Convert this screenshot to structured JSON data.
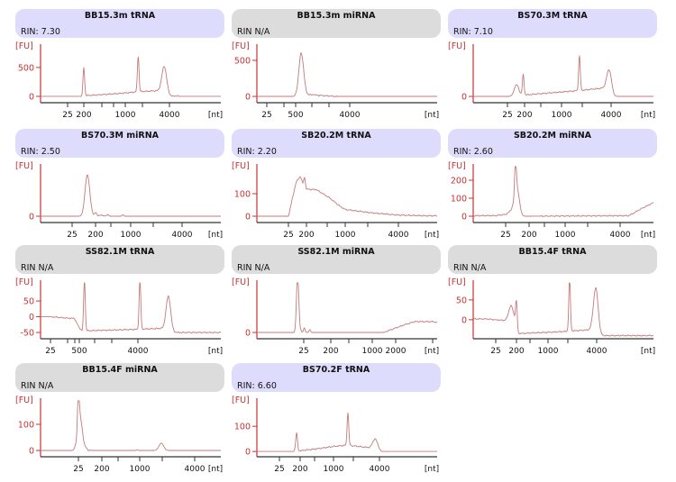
{
  "colors": {
    "header_blue": "#dedcfc",
    "header_gray": "#dcdcdc",
    "axis_y": "#c83232",
    "axis_x": "#333333",
    "trace": "#c47a7a"
  },
  "chart_data": [
    {
      "type": "line",
      "title": "BB15.3m tRNA",
      "rin": "RIN: 7.30",
      "header": "blue",
      "ylabel": "[FU]",
      "xlabel": "[nt]",
      "ylim": [
        -110,
        810
      ],
      "y_ticks": [
        0,
        500
      ],
      "x_ticks": [
        "25",
        "200",
        "",
        "",
        "1000",
        "",
        "4000"
      ],
      "peaks": [
        {
          "nt": 200,
          "fu": 500,
          "shape": "sharp"
        },
        {
          "nt": 1500,
          "fu": 700,
          "shape": "sharp"
        },
        {
          "nt": 3400,
          "fu": 520,
          "shape": "broad"
        }
      ],
      "baseline": [
        [
          150,
          0
        ],
        [
          200,
          10
        ],
        [
          800,
          50
        ],
        [
          1500,
          80
        ],
        [
          3000,
          100
        ],
        [
          4300,
          0
        ],
        [
          5000,
          8
        ],
        [
          5600,
          0
        ]
      ]
    },
    {
      "type": "line",
      "title": "BB15.3m miRNA",
      "rin": "RIN N/A",
      "header": "gray",
      "ylabel": "[FU]",
      "xlabel": "[nt]",
      "ylim": [
        -87,
        650
      ],
      "y_ticks": [
        0,
        500
      ],
      "x_ticks": [
        "25",
        "",
        "500",
        "",
        "",
        "4000"
      ],
      "peaks": [
        {
          "nt": 620,
          "fu": 600,
          "shape": "broad"
        },
        {
          "nt": 700,
          "fu": 40,
          "shape": "sharp"
        },
        {
          "nt": 1000,
          "fu": 30,
          "shape": "sharp"
        }
      ],
      "baseline": [
        [
          450,
          0
        ],
        [
          550,
          15
        ],
        [
          800,
          25
        ],
        [
          1500,
          10
        ],
        [
          2500,
          0
        ]
      ]
    },
    {
      "type": "line",
      "title": "BS70.3M tRNA",
      "rin": "RIN: 7.10",
      "header": "blue",
      "ylabel": "[FU]",
      "xlabel": "[nt]",
      "ylim": [
        -13,
        97
      ],
      "y_ticks": [
        0
      ],
      "x_ticks": [
        "25",
        "200",
        "",
        "1000",
        "",
        "4000"
      ],
      "peaks": [
        {
          "nt": 75,
          "fu": 24,
          "shape": "broad"
        },
        {
          "nt": 170,
          "fu": 45,
          "shape": "sharp"
        },
        {
          "nt": 1650,
          "fu": 85,
          "shape": "sharp"
        },
        {
          "nt": 3800,
          "fu": 55,
          "shape": "broad"
        }
      ],
      "baseline": [
        [
          50,
          0
        ],
        [
          200,
          3
        ],
        [
          1600,
          12
        ],
        [
          3500,
          18
        ],
        [
          4300,
          0
        ]
      ]
    },
    {
      "type": "line",
      "title": "BS70.3M miRNA",
      "rin": "RIN: 2.50",
      "header": "blue",
      "ylabel": "[FU]",
      "xlabel": "[nt]",
      "ylim": [
        -7,
        52
      ],
      "y_ticks": [
        0
      ],
      "x_ticks": [
        "25",
        "200",
        "",
        "1000",
        "",
        "4000"
      ],
      "peaks": [
        {
          "nt": 97,
          "fu": 46,
          "shape": "broad"
        },
        {
          "nt": 200,
          "fu": 4,
          "shape": "sharp"
        },
        {
          "nt": 350,
          "fu": 2,
          "shape": "sharp"
        },
        {
          "nt": 700,
          "fu": 1.5,
          "shape": "sharp"
        }
      ],
      "baseline": [
        [
          60,
          0
        ],
        [
          85,
          1
        ],
        [
          250,
          1
        ],
        [
          400,
          0
        ]
      ]
    },
    {
      "type": "line",
      "title": "SB20.2M tRNA",
      "rin": "RIN: 2.20",
      "header": "blue",
      "ylabel": "[FU]",
      "xlabel": "[nt]",
      "ylim": [
        -28,
        208
      ],
      "y_ticks": [
        0,
        100
      ],
      "x_ticks": [
        "25",
        "200",
        "",
        "1000",
        "",
        "4000"
      ],
      "peaks": [],
      "baseline": [
        [
          25,
          0
        ],
        [
          60,
          150
        ],
        [
          100,
          178
        ],
        [
          130,
          145
        ],
        [
          160,
          175
        ],
        [
          200,
          120
        ],
        [
          300,
          118
        ],
        [
          500,
          85
        ],
        [
          800,
          45
        ],
        [
          1000,
          30
        ],
        [
          2000,
          15
        ],
        [
          4000,
          5
        ],
        [
          8000,
          2
        ]
      ]
    },
    {
      "type": "line",
      "title": "SB20.2M miRNA",
      "rin": "RIN: 2.60",
      "header": "blue",
      "ylabel": "[FU]",
      "xlabel": "[nt]",
      "ylim": [
        -35,
        260
      ],
      "y_ticks": [
        0,
        100,
        200
      ],
      "x_ticks": [
        "25",
        "200",
        "",
        "1000",
        "",
        "4000"
      ],
      "peaks": [
        {
          "nt": 60,
          "fu": 215,
          "shape": "sharp"
        },
        {
          "nt": 68,
          "fu": 160,
          "shape": "broad"
        }
      ],
      "baseline": [
        [
          10,
          3
        ],
        [
          25,
          10
        ],
        [
          45,
          35
        ],
        [
          90,
          5
        ],
        [
          120,
          0
        ],
        [
          5000,
          3
        ],
        [
          7000,
          45
        ],
        [
          9300,
          75
        ]
      ]
    },
    {
      "type": "line",
      "title": "SS82.1M tRNA",
      "rin": "RIN N/A",
      "header": "gray",
      "ylabel": "[FU]",
      "xlabel": "[nt]",
      "ylim": [
        -70,
        99
      ],
      "y_ticks": [
        50,
        0,
        -50
      ],
      "x_ticks": [
        "25",
        "",
        "",
        "500",
        "",
        "",
        "4000"
      ],
      "peaks": [
        {
          "nt": 600,
          "fu": 120,
          "shape": "sharp"
        },
        {
          "nt": 4300,
          "fu": 125,
          "shape": "sharp"
        },
        {
          "nt": 11800,
          "fu": 65,
          "shape": "broad"
        }
      ],
      "baseline": [
        [
          25,
          0
        ],
        [
          200,
          -5
        ],
        [
          300,
          -5
        ],
        [
          450,
          -30
        ],
        [
          550,
          -45
        ],
        [
          4000,
          -40
        ],
        [
          9000,
          -37
        ],
        [
          13500,
          -50
        ]
      ]
    },
    {
      "type": "line",
      "title": "SS82.1M miRNA",
      "rin": "RIN N/A",
      "header": "gray",
      "ylabel": "[FU]",
      "xlabel": "[nt]",
      "ylim": [
        -7,
        52
      ],
      "y_ticks": [
        0
      ],
      "x_ticks": [
        "25",
        "200",
        "",
        "1000",
        "2000",
        ""
      ],
      "peaks": [
        {
          "nt": 15,
          "fu": 47,
          "shape": "sharp"
        },
        {
          "nt": 16.5,
          "fu": 40,
          "shape": "sharp"
        },
        {
          "nt": 26,
          "fu": 5,
          "shape": "sharp"
        },
        {
          "nt": 40,
          "fu": 3,
          "shape": "sharp"
        }
      ],
      "baseline": [
        [
          12,
          0
        ],
        [
          14,
          8
        ],
        [
          19,
          4
        ],
        [
          22,
          0
        ],
        [
          1400,
          0
        ],
        [
          2500,
          8
        ],
        [
          3500,
          12
        ],
        [
          6000,
          12
        ],
        [
          8000,
          10
        ]
      ]
    },
    {
      "type": "line",
      "title": "BB15.4F tRNA",
      "rin": "RIN N/A",
      "header": "gray",
      "ylabel": "[FU]",
      "xlabel": "[nt]",
      "ylim": [
        -48,
        86
      ],
      "y_ticks": [
        50,
        0
      ],
      "x_ticks": [
        "25",
        "200",
        "",
        "1000",
        "",
        "4000"
      ],
      "peaks": [
        {
          "nt": 116,
          "fu": 35,
          "shape": "broad"
        },
        {
          "nt": 200,
          "fu": 45,
          "shape": "sharp"
        },
        {
          "nt": 1850,
          "fu": 110,
          "shape": "sharp"
        },
        {
          "nt": 3900,
          "fu": 80,
          "shape": "broad"
        }
      ],
      "baseline": [
        [
          10,
          2
        ],
        [
          100,
          -3
        ],
        [
          180,
          -5
        ],
        [
          215,
          -35
        ],
        [
          1500,
          -30
        ],
        [
          3500,
          -25
        ],
        [
          4500,
          -40
        ]
      ]
    },
    {
      "type": "line",
      "title": "BB15.4F miRNA",
      "rin": "RIN N/A",
      "header": "gray",
      "ylabel": "[FU]",
      "xlabel": "[nt]",
      "ylim": [
        -24,
        179
      ],
      "y_ticks": [
        100,
        0
      ],
      "x_ticks": [
        "25",
        "200",
        "",
        "1000",
        "",
        "4000"
      ],
      "peaks": [
        {
          "nt": 25,
          "fu": 160,
          "shape": "sharp"
        },
        {
          "nt": 29,
          "fu": 125,
          "shape": "broad"
        },
        {
          "nt": 50,
          "fu": 8,
          "shape": "sharp"
        },
        {
          "nt": 900,
          "fu": 3,
          "shape": "sharp"
        },
        {
          "nt": 1725,
          "fu": 28,
          "shape": "broad"
        }
      ],
      "baseline": [
        [
          15,
          0
        ],
        [
          20,
          5
        ],
        [
          40,
          3
        ],
        [
          80,
          0
        ]
      ]
    },
    {
      "type": "line",
      "title": "BS70.2F tRNA",
      "rin": "RIN: 6.60",
      "header": "blue",
      "ylabel": "[FU]",
      "xlabel": "[nt]",
      "ylim": [
        -21,
        190
      ],
      "y_ticks": [
        100,
        0
      ],
      "x_ticks": [
        "25",
        "200",
        "",
        "1000",
        "",
        "4000"
      ],
      "peaks": [
        {
          "nt": 140,
          "fu": 75,
          "shape": "sharp"
        },
        {
          "nt": 1545,
          "fu": 155,
          "shape": "sharp"
        },
        {
          "nt": 3500,
          "fu": 50,
          "shape": "broad"
        }
      ],
      "baseline": [
        [
          100,
          0
        ],
        [
          115,
          6
        ],
        [
          200,
          3
        ],
        [
          500,
          12
        ],
        [
          1000,
          20
        ],
        [
          1500,
          25
        ],
        [
          3000,
          15
        ],
        [
          3900,
          10
        ],
        [
          4200,
          0
        ]
      ]
    }
  ]
}
